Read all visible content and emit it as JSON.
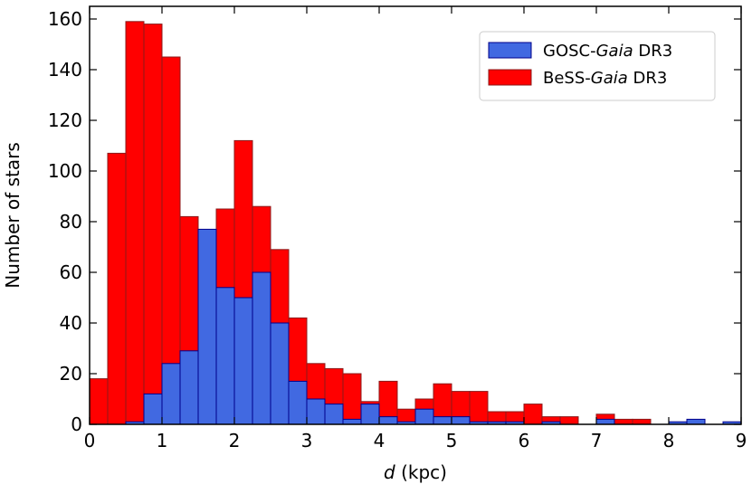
{
  "chart_data": {
    "type": "bar",
    "subtype": "overlapping-histogram",
    "title": "",
    "xlabel_italic": "d",
    "xlabel_rest": " (kpc)",
    "ylabel": "Number of stars",
    "xlim": [
      0,
      9
    ],
    "ylim": [
      0,
      165
    ],
    "bin_width": 0.25,
    "xticks": [
      0,
      1,
      2,
      3,
      4,
      5,
      6,
      7,
      8,
      9
    ],
    "yticks": [
      0,
      20,
      40,
      60,
      80,
      100,
      120,
      140,
      160
    ],
    "grid": false,
    "legend_position": "top-right",
    "bin_starts": [
      0,
      0.25,
      0.5,
      0.75,
      1.0,
      1.25,
      1.5,
      1.75,
      2.0,
      2.25,
      2.5,
      2.75,
      3.0,
      3.25,
      3.5,
      3.75,
      4.0,
      4.25,
      4.5,
      4.75,
      5.0,
      5.25,
      5.5,
      5.75,
      6.0,
      6.25,
      6.5,
      6.75,
      7.0,
      7.25,
      7.5,
      7.75,
      8.0,
      8.25,
      8.5,
      8.75
    ],
    "series": [
      {
        "name_prefix": "BeSS-",
        "name_italic": "Gaia",
        "name_suffix": " DR3",
        "color": "#ff0000",
        "edgecolor": "#8b1a1a",
        "values": [
          18,
          107,
          159,
          158,
          145,
          82,
          76,
          85,
          112,
          86,
          69,
          42,
          24,
          22,
          20,
          9,
          17,
          6,
          10,
          16,
          13,
          13,
          5,
          5,
          8,
          3,
          3,
          0,
          4,
          2,
          2,
          0,
          0,
          0,
          0,
          0
        ]
      },
      {
        "name_prefix": "GOSC-",
        "name_italic": "Gaia",
        "name_suffix": " DR3",
        "color": "#4169e1",
        "edgecolor": "#00008b",
        "values": [
          0,
          0,
          1,
          12,
          24,
          29,
          77,
          54,
          50,
          60,
          40,
          17,
          10,
          8,
          2,
          8,
          3,
          1,
          6,
          3,
          3,
          1,
          1,
          1,
          0,
          1,
          0,
          0,
          2,
          0,
          0,
          0,
          1,
          2,
          0,
          1
        ]
      }
    ]
  }
}
